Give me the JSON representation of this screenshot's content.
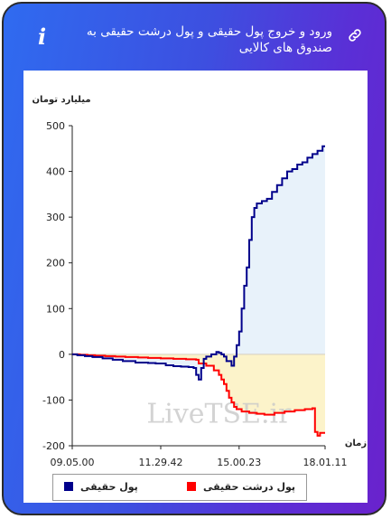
{
  "header": {
    "title": "ورود و خروج پول حقیقی و پول درشت حقیقی به صندوق های کالایی",
    "info_icon": "info-italic-i",
    "link_icon": "link-chain-icon"
  },
  "colors": {
    "header_gradient_start": "#2f6bf0",
    "header_gradient_end": "#6a22cc",
    "series_real": "#00008b",
    "series_big": "#ff0000",
    "fill_positive": "#e8f2fa",
    "fill_negative": "#fcf2c4"
  },
  "chart_data": {
    "type": "line",
    "ylabel": "میلیارد تومان",
    "xlabel": "زمان",
    "ylim": [
      -200,
      500
    ],
    "yticks": [
      500,
      400,
      300,
      200,
      100,
      0,
      -100,
      -200
    ],
    "xlim": [
      0,
      100
    ],
    "xticks": [
      {
        "label": "09.05.00",
        "at": 0
      },
      {
        "label": "11.29.42",
        "at": 35
      },
      {
        "label": "15.00.23",
        "at": 66
      },
      {
        "label": "18.01.11",
        "at": 100
      }
    ],
    "watermark": "LiveTSE.ir",
    "series": [
      {
        "name": "پول حقیقی",
        "color": "#00008b",
        "step": true,
        "points": [
          [
            0,
            0
          ],
          [
            2,
            -2
          ],
          [
            5,
            -4
          ],
          [
            8,
            -6
          ],
          [
            12,
            -9
          ],
          [
            16,
            -12
          ],
          [
            20,
            -15
          ],
          [
            25,
            -18
          ],
          [
            30,
            -19
          ],
          [
            33,
            -20
          ],
          [
            37,
            -24
          ],
          [
            40,
            -26
          ],
          [
            43,
            -27
          ],
          [
            46,
            -28
          ],
          [
            48,
            -30
          ],
          [
            49,
            -45
          ],
          [
            50,
            -55
          ],
          [
            51,
            -30
          ],
          [
            52,
            -10
          ],
          [
            53,
            -5
          ],
          [
            55,
            0
          ],
          [
            57,
            5
          ],
          [
            58,
            3
          ],
          [
            59,
            0
          ],
          [
            60,
            -5
          ],
          [
            61,
            -15
          ],
          [
            63,
            -25
          ],
          [
            64,
            -5
          ],
          [
            65,
            20
          ],
          [
            66,
            50
          ],
          [
            67,
            100
          ],
          [
            68,
            150
          ],
          [
            69,
            190
          ],
          [
            70,
            250
          ],
          [
            71,
            300
          ],
          [
            72,
            320
          ],
          [
            73,
            330
          ],
          [
            75,
            335
          ],
          [
            77,
            340
          ],
          [
            79,
            355
          ],
          [
            81,
            370
          ],
          [
            83,
            385
          ],
          [
            85,
            400
          ],
          [
            87,
            405
          ],
          [
            89,
            415
          ],
          [
            91,
            420
          ],
          [
            93,
            430
          ],
          [
            95,
            438
          ],
          [
            97,
            445
          ],
          [
            99,
            455
          ],
          [
            100,
            455
          ]
        ]
      },
      {
        "name": "پول درشت حقیقی",
        "color": "#ff0000",
        "step": true,
        "points": [
          [
            0,
            0
          ],
          [
            3,
            -1
          ],
          [
            6,
            -2
          ],
          [
            9,
            -3
          ],
          [
            13,
            -4
          ],
          [
            17,
            -5
          ],
          [
            21,
            -6
          ],
          [
            26,
            -7
          ],
          [
            30,
            -8
          ],
          [
            35,
            -9
          ],
          [
            40,
            -10
          ],
          [
            45,
            -11
          ],
          [
            49,
            -12
          ],
          [
            50,
            -20
          ],
          [
            53,
            -25
          ],
          [
            56,
            -35
          ],
          [
            58,
            -45
          ],
          [
            59,
            -55
          ],
          [
            60,
            -65
          ],
          [
            61,
            -80
          ],
          [
            62,
            -95
          ],
          [
            63,
            -105
          ],
          [
            64,
            -115
          ],
          [
            65,
            -120
          ],
          [
            67,
            -125
          ],
          [
            70,
            -128
          ],
          [
            73,
            -130
          ],
          [
            76,
            -132
          ],
          [
            80,
            -128
          ],
          [
            84,
            -125
          ],
          [
            88,
            -122
          ],
          [
            92,
            -120
          ],
          [
            95,
            -118
          ],
          [
            96,
            -170
          ],
          [
            97,
            -178
          ],
          [
            98,
            -172
          ],
          [
            100,
            -172
          ]
        ]
      }
    ]
  }
}
